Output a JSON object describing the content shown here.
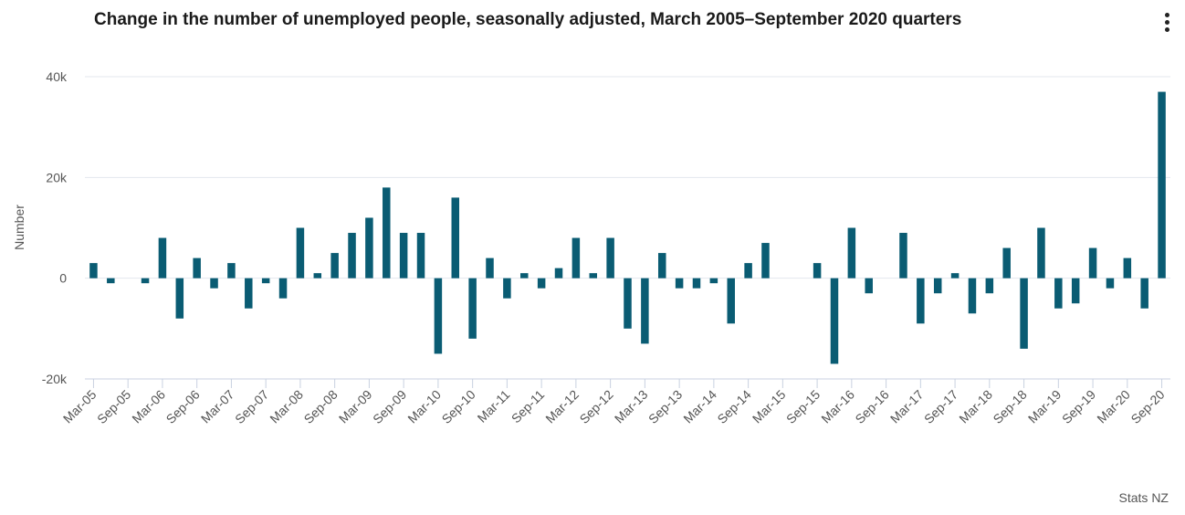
{
  "chart_data": {
    "type": "bar",
    "title": "Change in the number of unemployed people, seasonally adjusted, March 2005–September 2020 quarters",
    "xlabel": "",
    "ylabel": "Number",
    "ylim": [
      -20000,
      40000
    ],
    "yticks": [
      40000,
      20000,
      0,
      -20000
    ],
    "ytick_labels": [
      "40k",
      "20k",
      "0",
      "-20k"
    ],
    "xtick_labels": [
      "Mar-05",
      "Sep-05",
      "Mar-06",
      "Sep-06",
      "Mar-07",
      "Sep-07",
      "Mar-08",
      "Sep-08",
      "Mar-09",
      "Sep-09",
      "Mar-10",
      "Sep-10",
      "Mar-11",
      "Sep-11",
      "Mar-12",
      "Sep-12",
      "Mar-13",
      "Sep-13",
      "Mar-14",
      "Sep-14",
      "Mar-15",
      "Sep-15",
      "Mar-16",
      "Sep-16",
      "Mar-17",
      "Sep-17",
      "Mar-18",
      "Sep-18",
      "Mar-19",
      "Sep-19",
      "Mar-20",
      "Sep-20"
    ],
    "categories": [
      "Mar-05",
      "Jun-05",
      "Sep-05",
      "Dec-05",
      "Mar-06",
      "Jun-06",
      "Sep-06",
      "Dec-06",
      "Mar-07",
      "Jun-07",
      "Sep-07",
      "Dec-07",
      "Mar-08",
      "Jun-08",
      "Sep-08",
      "Dec-08",
      "Mar-09",
      "Jun-09",
      "Sep-09",
      "Dec-09",
      "Mar-10",
      "Jun-10",
      "Sep-10",
      "Dec-10",
      "Mar-11",
      "Jun-11",
      "Sep-11",
      "Dec-11",
      "Mar-12",
      "Jun-12",
      "Sep-12",
      "Dec-12",
      "Mar-13",
      "Jun-13",
      "Sep-13",
      "Dec-13",
      "Mar-14",
      "Jun-14",
      "Sep-14",
      "Dec-14",
      "Mar-15",
      "Jun-15",
      "Sep-15",
      "Dec-15",
      "Mar-16",
      "Jun-16",
      "Sep-16",
      "Dec-16",
      "Mar-17",
      "Jun-17",
      "Sep-17",
      "Dec-17",
      "Mar-18",
      "Jun-18",
      "Sep-18",
      "Dec-18",
      "Mar-19",
      "Jun-19",
      "Sep-19",
      "Dec-19",
      "Mar-20",
      "Jun-20",
      "Sep-20"
    ],
    "series": [
      {
        "name": "Change in unemployed people",
        "color": "#0a5c73",
        "values": [
          3000,
          -1000,
          0,
          -1000,
          8000,
          -8000,
          4000,
          -2000,
          3000,
          -6000,
          -1000,
          -4000,
          10000,
          1000,
          5000,
          9000,
          12000,
          18000,
          9000,
          9000,
          -15000,
          16000,
          -12000,
          4000,
          -4000,
          1000,
          -2000,
          2000,
          8000,
          1000,
          8000,
          -10000,
          -13000,
          5000,
          -2000,
          -2000,
          -1000,
          -9000,
          3000,
          7000,
          0,
          0,
          3000,
          -17000,
          10000,
          -3000,
          0,
          9000,
          -9000,
          -3000,
          1000,
          -7000,
          -3000,
          6000,
          -14000,
          10000,
          -6000,
          -5000,
          6000,
          -2000,
          4000,
          -6000,
          37000
        ]
      }
    ]
  },
  "credit": "Stats NZ",
  "colors": {
    "bar": "#0a5c73",
    "grid": "#e3e7ee",
    "axis": "#c8d1e0"
  }
}
